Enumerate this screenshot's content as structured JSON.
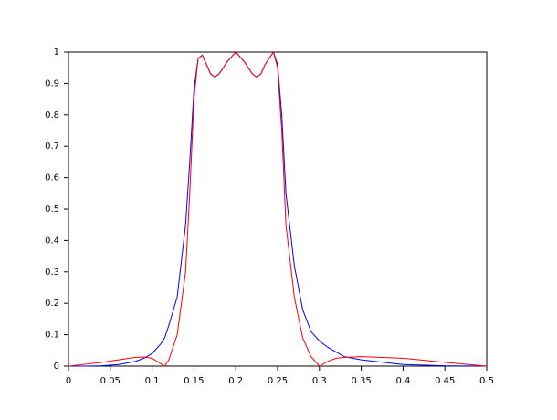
{
  "chart_data": {
    "type": "line",
    "x": [
      0,
      0.02,
      0.04,
      0.06,
      0.08,
      0.09,
      0.1,
      0.11,
      0.115,
      0.12,
      0.13,
      0.14,
      0.145,
      0.15,
      0.155,
      0.16,
      0.165,
      0.17,
      0.175,
      0.18,
      0.19,
      0.2,
      0.21,
      0.22,
      0.225,
      0.23,
      0.235,
      0.245,
      0.25,
      0.255,
      0.26,
      0.27,
      0.28,
      0.29,
      0.3,
      0.31,
      0.32,
      0.33,
      0.35,
      0.4,
      0.45,
      0.5
    ],
    "series": [
      {
        "color": "#0000ff",
        "values": [
          0,
          0,
          0.001,
          0.005,
          0.015,
          0.025,
          0.04,
          0.07,
          0.09,
          0.13,
          0.22,
          0.45,
          0.65,
          0.88,
          0.98,
          0.99,
          0.96,
          0.93,
          0.92,
          0.93,
          0.97,
          1.0,
          0.97,
          0.93,
          0.92,
          0.93,
          0.96,
          1.0,
          0.96,
          0.8,
          0.55,
          0.32,
          0.18,
          0.11,
          0.08,
          0.06,
          0.045,
          0.03,
          0.02,
          0.005,
          0.001,
          0
        ]
      },
      {
        "color": "#ff0000",
        "values": [
          0,
          0.006,
          0.012,
          0.02,
          0.028,
          0.029,
          0.025,
          0.008,
          0,
          0.02,
          0.1,
          0.3,
          0.55,
          0.85,
          0.98,
          0.99,
          0.96,
          0.93,
          0.92,
          0.93,
          0.97,
          1.0,
          0.97,
          0.93,
          0.92,
          0.93,
          0.96,
          1.0,
          0.95,
          0.75,
          0.45,
          0.22,
          0.09,
          0.03,
          0,
          0.015,
          0.025,
          0.028,
          0.03,
          0.025,
          0.012,
          0
        ]
      }
    ],
    "xlim": [
      0,
      0.5
    ],
    "xticks": [
      0,
      0.05,
      0.1,
      0.15,
      0.2,
      0.25,
      0.3,
      0.35,
      0.4,
      0.45,
      0.5
    ],
    "ylim": [
      0,
      1
    ],
    "yticks": [
      0,
      0.1,
      0.2,
      0.3,
      0.4,
      0.5,
      0.6,
      0.7,
      0.8,
      0.9,
      1
    ],
    "grid": false
  }
}
